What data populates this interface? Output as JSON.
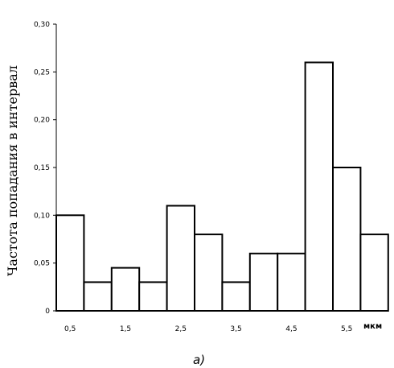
{
  "chart_data": {
    "type": "bar",
    "ylabel": "Частота попадания в интервал",
    "xunit": "мкм",
    "caption": "а)",
    "ylim": [
      0,
      0.3
    ],
    "y_ticks": [
      "0",
      "0,05",
      "0,10",
      "0,15",
      "0,20",
      "0,25",
      "0,30"
    ],
    "x_tick_labels": [
      "0,5",
      "1,5",
      "2,5",
      "3,5",
      "4,5",
      "5,5"
    ],
    "bins": [
      {
        "from": 0.25,
        "to": 0.75,
        "value": 0.1
      },
      {
        "from": 0.75,
        "to": 1.25,
        "value": 0.03
      },
      {
        "from": 1.25,
        "to": 1.75,
        "value": 0.045
      },
      {
        "from": 1.75,
        "to": 2.25,
        "value": 0.03
      },
      {
        "from": 2.25,
        "to": 2.75,
        "value": 0.11
      },
      {
        "from": 2.75,
        "to": 3.25,
        "value": 0.08
      },
      {
        "from": 3.25,
        "to": 3.75,
        "value": 0.03
      },
      {
        "from": 3.75,
        "to": 4.25,
        "value": 0.06
      },
      {
        "from": 4.25,
        "to": 4.75,
        "value": 0.06
      },
      {
        "from": 4.75,
        "to": 5.25,
        "value": 0.26
      },
      {
        "from": 5.25,
        "to": 5.75,
        "value": 0.15
      },
      {
        "from": 5.75,
        "to": 6.25,
        "value": 0.08
      }
    ]
  }
}
